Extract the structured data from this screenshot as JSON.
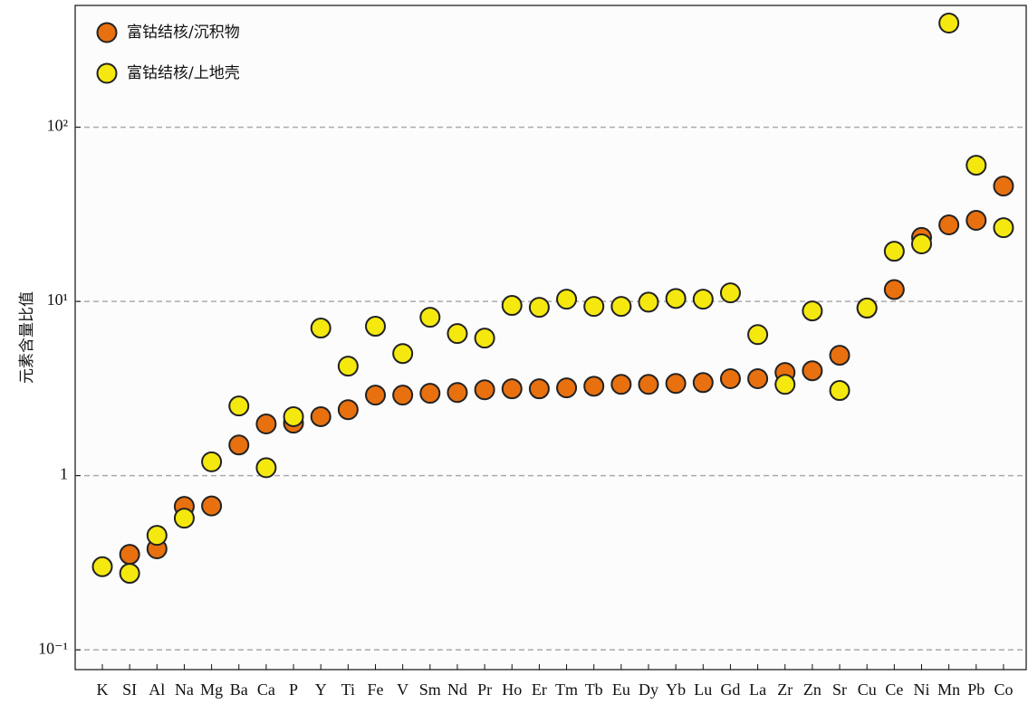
{
  "chart_data": {
    "type": "scatter",
    "y_label": "元素含量比值",
    "categories": [
      "K",
      "SI",
      "Al",
      "Na",
      "Mg",
      "Ba",
      "Ca",
      "P",
      "Y",
      "Ti",
      "Fe",
      "V",
      "Sm",
      "Nd",
      "Pr",
      "Ho",
      "Er",
      "Tm",
      "Tb",
      "Eu",
      "Dy",
      "Yb",
      "Lu",
      "Gd",
      "La",
      "Zr",
      "Zn",
      "Sr",
      "Cu",
      "Ce",
      "Ni",
      "Mn",
      "Pb",
      "Co"
    ],
    "series": [
      {
        "name": "富钴结核/沉积物",
        "color": "#e8700f",
        "values": [
          null,
          0.353,
          0.38,
          0.666,
          0.67,
          1.5,
          1.98,
          2.0,
          2.18,
          2.39,
          2.9,
          2.9,
          2.97,
          3.0,
          3.11,
          3.15,
          3.15,
          3.19,
          3.26,
          3.34,
          3.34,
          3.38,
          3.42,
          3.6,
          3.6,
          3.91,
          4.0,
          4.91,
          9.16,
          11.7,
          23.3,
          27.5,
          29.2,
          45.9
        ]
      },
      {
        "name": "富钴结核/上地壳",
        "color": "#f5e80f",
        "values": [
          0.3,
          0.275,
          0.454,
          0.57,
          1.2,
          2.51,
          1.11,
          2.18,
          7.03,
          4.25,
          7.2,
          5.02,
          8.11,
          6.54,
          6.16,
          9.48,
          9.25,
          10.3,
          9.36,
          9.36,
          9.9,
          10.4,
          10.3,
          11.2,
          6.45,
          3.34,
          8.82,
          3.08,
          9.16,
          19.4,
          21.4,
          396,
          60.5,
          26.5
        ]
      }
    ],
    "log_y": true,
    "ylim": [
      0.077,
      500
    ],
    "yticks": [
      {
        "value": 0.1,
        "label": "10⁻¹"
      },
      1,
      {
        "value": 10,
        "label": "10¹"
      },
      {
        "value": 100,
        "label": "10²"
      }
    ],
    "grid": true,
    "legend": "upper left"
  }
}
